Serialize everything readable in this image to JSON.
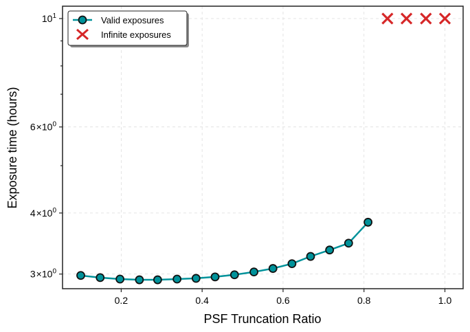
{
  "chart_data": {
    "type": "line",
    "xlabel": "PSF Truncation Ratio",
    "ylabel": "Exposure time (hours)",
    "yscale": "log",
    "xlim": [
      0.055,
      1.045
    ],
    "ylim": [
      2.8,
      10.6
    ],
    "grid": true,
    "legend_position": "top-left",
    "x_ticks": [
      {
        "value": 0.2,
        "label": "0.2"
      },
      {
        "value": 0.4,
        "label": "0.4"
      },
      {
        "value": 0.6,
        "label": "0.6"
      },
      {
        "value": 0.8,
        "label": "0.8"
      },
      {
        "value": 1.0,
        "label": "1.0"
      }
    ],
    "y_ticks": [
      {
        "value": 3,
        "base": "3",
        "times": "×",
        "tens": "10",
        "exp": "0"
      },
      {
        "value": 4,
        "base": "4",
        "times": "×",
        "tens": "10",
        "exp": "0"
      },
      {
        "value": 6,
        "base": "6",
        "times": "×",
        "tens": "10",
        "exp": "0"
      },
      {
        "value": 10,
        "base": "",
        "times": "",
        "tens": "10",
        "exp": "1"
      }
    ],
    "y_minor_ticks": [
      5,
      7,
      8,
      9
    ],
    "series": [
      {
        "name": "Valid exposures",
        "marker": "circle",
        "line_color": "#00929a",
        "marker_fill": "#00929a",
        "marker_edge": "#111111",
        "x": [
          0.1,
          0.148,
          0.197,
          0.245,
          0.29,
          0.338,
          0.385,
          0.432,
          0.48,
          0.528,
          0.575,
          0.622,
          0.668,
          0.715,
          0.762,
          0.81
        ],
        "y": [
          2.98,
          2.95,
          2.93,
          2.92,
          2.92,
          2.93,
          2.94,
          2.96,
          2.99,
          3.03,
          3.08,
          3.15,
          3.26,
          3.36,
          3.47,
          3.83
        ]
      },
      {
        "name": "Infinite exposures",
        "marker": "x",
        "marker_color": "#d62728",
        "x": [
          0.858,
          0.905,
          0.953,
          1.0
        ],
        "y": [
          10,
          10,
          10,
          10
        ]
      }
    ]
  }
}
